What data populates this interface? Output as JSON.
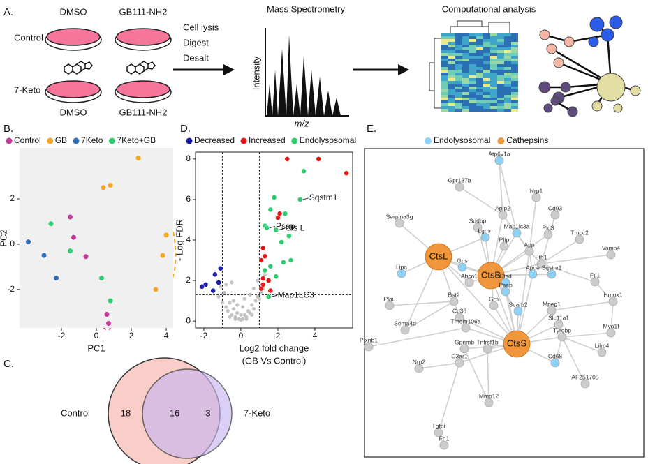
{
  "panel_a": {
    "panel_label": "A.",
    "top_labels": [
      "DMSO",
      "GB111-NH2"
    ],
    "row_labels": [
      "Control",
      "7-Keto"
    ],
    "bottom_labels": [
      "DMSO",
      "GB111-NH2"
    ],
    "steps": [
      "Cell lysis",
      "Digest",
      "Desalt"
    ],
    "ms_title": "Mass Spectrometry",
    "ms_ylabel": "Intensity",
    "ms_xlabel": "m/z",
    "comp_title": "Computational analysis"
  },
  "chart_data": [
    {
      "type": "scatter",
      "panel_label": "B.",
      "xlabel": "PC1",
      "ylabel": "PC2",
      "xlim": [
        -4.4,
        4.4
      ],
      "ylim": [
        -3.7,
        4.25
      ],
      "xticks": [
        -2,
        0,
        2,
        4
      ],
      "yticks": [
        -2,
        0,
        2
      ],
      "background": "#f0f0f0",
      "series": [
        {
          "name": "Control",
          "color": "#c2399a",
          "x": [
            -1.5,
            -1.3,
            -0.6,
            0.6,
            0.7
          ],
          "values": [
            1.2,
            0.3,
            -0.55,
            -3.1,
            -3.5
          ]
        },
        {
          "name": "GB",
          "color": "#f5a623",
          "x": [
            0.4,
            0.8,
            2.4,
            4.0,
            3.8,
            3.4
          ],
          "values": [
            2.5,
            2.6,
            3.8,
            0.4,
            -0.5,
            -2.0
          ]
        },
        {
          "name": "7Keto",
          "color": "#2f6fb8",
          "x": [
            -3.9,
            -3.0,
            -2.3
          ],
          "values": [
            0.1,
            -0.5,
            -1.5
          ]
        },
        {
          "name": "7Keto+GB",
          "color": "#2ecc71",
          "x": [
            -2.6,
            -1.5,
            0.3,
            0.8
          ],
          "values": [
            0.9,
            -0.3,
            -1.5,
            -2.5
          ]
        }
      ]
    },
    {
      "type": "scatter",
      "panel_label": "D.",
      "xlabel": "Log2 fold change",
      "xlabel_sub": "(GB Vs Control)",
      "ylabel": "- Log FDR",
      "xlim": [
        -2.45,
        6.04
      ],
      "ylim": [
        -0.34,
        8.34
      ],
      "xticks": [
        -2,
        0,
        2,
        4
      ],
      "yticks": [
        0,
        2,
        4,
        6,
        8
      ],
      "background": "#ffffff",
      "vlines": [
        -1,
        1
      ],
      "hline": 1.3,
      "series": [
        {
          "color": "#c4c4c4",
          "x": [
            -1.2,
            -1.0,
            -0.9,
            -0.8,
            -0.7,
            -0.6,
            -0.5,
            -0.4,
            -0.3,
            -0.2,
            -0.1,
            0,
            0.1,
            0.2,
            0.3,
            0.4,
            0.5,
            0.6,
            0.7,
            0.8,
            0.9,
            1.0,
            1.1,
            1.2,
            -0.6,
            -0.3,
            0,
            0.3,
            0.6,
            -0.4,
            0.1,
            0.5,
            -0.8,
            0.9,
            -0.2,
            0.2,
            -1.1,
            1.3,
            0.7,
            -0.5
          ],
          "values": [
            1.2,
            0.9,
            1.4,
            0.7,
            0.5,
            0.9,
            0.3,
            0.6,
            0.2,
            0.4,
            0.1,
            0.05,
            0.1,
            0.3,
            0.2,
            0.5,
            0.4,
            0.8,
            0.6,
            1.0,
            1.2,
            1.1,
            1.4,
            1.6,
            0.2,
            0.1,
            0.3,
            0.1,
            0.3,
            1.0,
            0.7,
            1.3,
            1.8,
            2.0,
            0.8,
            1.1,
            1.7,
            2.3,
            1.6,
            1.9
          ]
        },
        {
          "name": "Decreased",
          "color": "#1a1aa8",
          "x": [
            -1.4,
            -1.2,
            -1.9,
            -1.1,
            -2.1,
            -1.5
          ],
          "values": [
            2.3,
            1.9,
            1.8,
            2.6,
            1.7,
            1.5
          ]
        },
        {
          "name": "Increased",
          "color": "#e31a1c",
          "x": [
            4.2,
            5.7,
            2.0,
            2.1,
            1.2,
            1.3,
            1.1,
            1.2,
            1.5,
            1.1,
            1.6,
            1.2,
            2.5
          ],
          "values": [
            8.0,
            7.3,
            5.1,
            5.3,
            3.6,
            3.2,
            3.0,
            2.1,
            2.0,
            1.6,
            1.5,
            1.8,
            8.0
          ]
        },
        {
          "name": "Endolysosomal",
          "color": "#2ecc71",
          "x": [
            3.4,
            3.2,
            1.8,
            1.6,
            2.4,
            1.3,
            1.4,
            1.9,
            2.2,
            2.6,
            2.3,
            1.6,
            2.7,
            1.3,
            1.9,
            1.5
          ],
          "values": [
            7.4,
            6.0,
            6.1,
            5.5,
            5.3,
            4.7,
            4.6,
            4.5,
            3.9,
            4.2,
            2.9,
            2.7,
            3.0,
            2.5,
            2.2,
            1.2
          ],
          "labels": [
            null,
            "Sqstm1",
            null,
            null,
            null,
            null,
            "Psap",
            "Cts L",
            null,
            null,
            null,
            null,
            null,
            null,
            null,
            "Map1LC3"
          ]
        }
      ]
    }
  ],
  "venn": {
    "panel_label": "C.",
    "sets": [
      "Control",
      "7-Keto"
    ],
    "only_first": 18,
    "shared": 16,
    "only_second": 3
  },
  "network": {
    "panel_label": "E.",
    "legend": [
      {
        "name": "Endolysosomal",
        "color": "#8fd0f5"
      },
      {
        "name": "Cathepsins",
        "color": "#f0963c"
      }
    ],
    "nodes": [
      {
        "label": "Atp6v1a",
        "group": 0
      },
      {
        "label": "Gpr137b"
      },
      {
        "label": "Nrp1"
      },
      {
        "label": "Cd93"
      },
      {
        "label": "Serpina3g"
      },
      {
        "label": "Aplp2"
      },
      {
        "label": "Sddbp"
      },
      {
        "label": "Map1lc3a",
        "group": 0
      },
      {
        "label": "Pld3"
      },
      {
        "label": "Tmcc2"
      },
      {
        "label": "Lgmn",
        "group": 0
      },
      {
        "label": "Pltp"
      },
      {
        "label": "App"
      },
      {
        "label": "CtsL",
        "group": 1
      },
      {
        "label": "Gns",
        "group": 0
      },
      {
        "label": "Fth1"
      },
      {
        "label": "Vamp4"
      },
      {
        "label": "Lipa",
        "group": 0
      },
      {
        "label": "CtsB",
        "group": 1
      },
      {
        "label": "Apoe",
        "group": 0
      },
      {
        "label": "Sqstm1",
        "group": 0
      },
      {
        "label": "Abca1"
      },
      {
        "label": "Ctsd",
        "group": 0
      },
      {
        "label": "Ftl1"
      },
      {
        "label": "Psap",
        "group": 0
      },
      {
        "label": "Scarb2",
        "group": 0
      },
      {
        "label": "Plau"
      },
      {
        "label": "Bst2"
      },
      {
        "label": "Grn"
      },
      {
        "label": "Mpeg1"
      },
      {
        "label": "Hmox1"
      },
      {
        "label": "Cd36"
      },
      {
        "label": "Slc11a1"
      },
      {
        "label": "Sema4d"
      },
      {
        "label": "Tmem106a"
      },
      {
        "label": "Myo1f"
      },
      {
        "label": "CtsS",
        "group": 1
      },
      {
        "label": "Tyrobp"
      },
      {
        "label": "Gpnmb"
      },
      {
        "label": "Tnfrsf1b"
      },
      {
        "label": "Plxnb1"
      },
      {
        "label": "Lilrb4"
      },
      {
        "label": "C3ar1"
      },
      {
        "label": "Cd68",
        "group": 0
      },
      {
        "label": "Nrp2"
      },
      {
        "label": "AF251705"
      },
      {
        "label": "Mmp12"
      },
      {
        "label": "Tgfbi"
      },
      {
        "label": "Fn1"
      }
    ]
  }
}
